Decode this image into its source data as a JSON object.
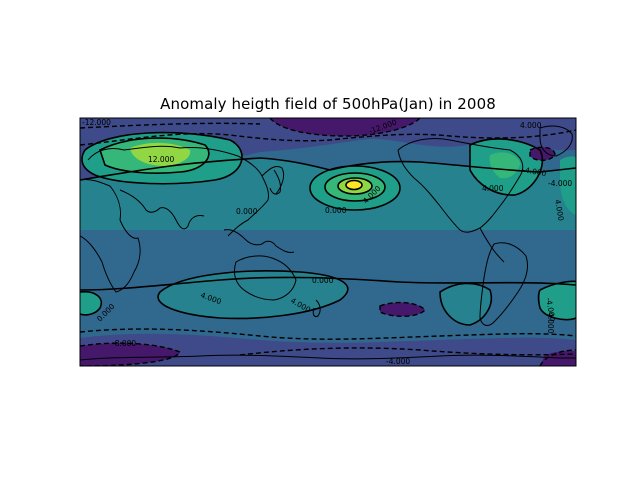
{
  "figure": {
    "title": "Anomaly heigth field of 500hPa(Jan) in 2008"
  },
  "map": {
    "projection": "cylindrical (plate carrée), Pacific-centred",
    "colormap": "viridis",
    "colors": {
      "frame": "#000000",
      "coastline": "#000000",
      "contour": "#000000",
      "deep_low": "#46186b",
      "low": "#3e4a89",
      "mid_low": "#31688e",
      "mid": "#26828e",
      "mid_high": "#1f9e89",
      "high": "#35b779",
      "very_high": "#90d743",
      "peak": "#fde725"
    },
    "contour_labels": [
      {
        "text": "-12.000"
      },
      {
        "text": "-12.000"
      },
      {
        "text": "4.000"
      },
      {
        "text": "12.000"
      },
      {
        "text": "-4.000"
      },
      {
        "text": "0.000"
      },
      {
        "text": "4.000"
      },
      {
        "text": "0.000"
      },
      {
        "text": "4.000"
      },
      {
        "text": "-4.000"
      },
      {
        "text": "4.000"
      },
      {
        "text": "4.000"
      },
      {
        "text": "4.000"
      },
      {
        "text": "0.000"
      },
      {
        "text": "-4.000"
      },
      {
        "text": "0.000"
      },
      {
        "text": "4.000"
      },
      {
        "text": "-8.000"
      },
      {
        "text": "-4.000"
      }
    ]
  }
}
